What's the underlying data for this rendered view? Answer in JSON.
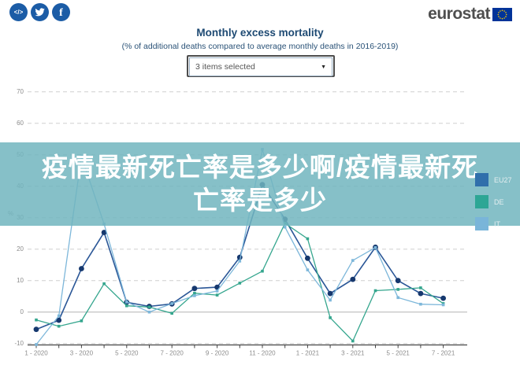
{
  "header": {
    "logo_text": "eurostat",
    "social": [
      {
        "name": "code-icon"
      },
      {
        "name": "twitter-icon"
      },
      {
        "name": "facebook-icon"
      }
    ]
  },
  "title": "Monthly excess mortality",
  "subtitle": "(% of additional deaths compared to average monthly deaths in 2016-2019)",
  "dropdown": {
    "value": "3 items selected"
  },
  "overlay_banner": {
    "line1": "疫情最新死亡率是多少啊/疫情最新死",
    "line2": "亡率是多少",
    "background": "#86c0c8"
  },
  "legend": [
    {
      "label": "EU27",
      "color": "#306fab"
    },
    {
      "label": "DE",
      "color": "#2da695"
    },
    {
      "label": "IT",
      "color": "#79b5d9"
    }
  ],
  "chart_data": {
    "type": "line",
    "title": "Monthly excess mortality",
    "xlabel": "",
    "ylabel": "%",
    "ylim": [
      -10,
      70
    ],
    "ytick_interval": 10,
    "grid": true,
    "legend_position": "right",
    "categories": [
      "1-2020",
      "2-2020",
      "3-2020",
      "4-2020",
      "5-2020",
      "6-2020",
      "7-2020",
      "8-2020",
      "9-2020",
      "10-2020",
      "11-2020",
      "12-2020",
      "1-2021",
      "2-2021",
      "3-2021",
      "4-2021",
      "5-2021",
      "6-2021",
      "7-2021"
    ],
    "x_labels_shown": [
      "1 - 2020",
      "3 - 2020",
      "5 - 2020",
      "7 - 2020",
      "9 - 2020",
      "11 - 2020",
      "1 - 2021",
      "3 - 2021",
      "5 - 2021",
      "7 - 2021"
    ],
    "series": [
      {
        "name": "EU27",
        "color": "#2b5797",
        "marker_color": "#16386e",
        "marker": "circle",
        "values": [
          -5.5,
          -2.6,
          13.8,
          25.3,
          3.1,
          1.8,
          2.6,
          7.5,
          7.9,
          17.4,
          40.5,
          29.5,
          17.1,
          5.9,
          10.4,
          20.6,
          10,
          5.9,
          4.4
        ]
      },
      {
        "name": "DE",
        "color": "#35a68e",
        "marker_color": "#35a68e",
        "marker": "square",
        "values": [
          -2.5,
          -4.5,
          -2.8,
          9,
          2,
          1.6,
          -0.4,
          6,
          5.4,
          9.2,
          13,
          28.2,
          23.3,
          -1.8,
          -9.2,
          6.8,
          7.2,
          7.7,
          2.7
        ]
      },
      {
        "name": "IT",
        "color": "#7db7da",
        "marker_color": "#7db7da",
        "marker": "square",
        "values": [
          -11,
          -1.2,
          49.5,
          28,
          3.2,
          0,
          2.7,
          5.2,
          6.7,
          16.2,
          51.7,
          27,
          13.4,
          3.8,
          16.4,
          20.5,
          4.6,
          2.5,
          2.3
        ]
      }
    ]
  }
}
